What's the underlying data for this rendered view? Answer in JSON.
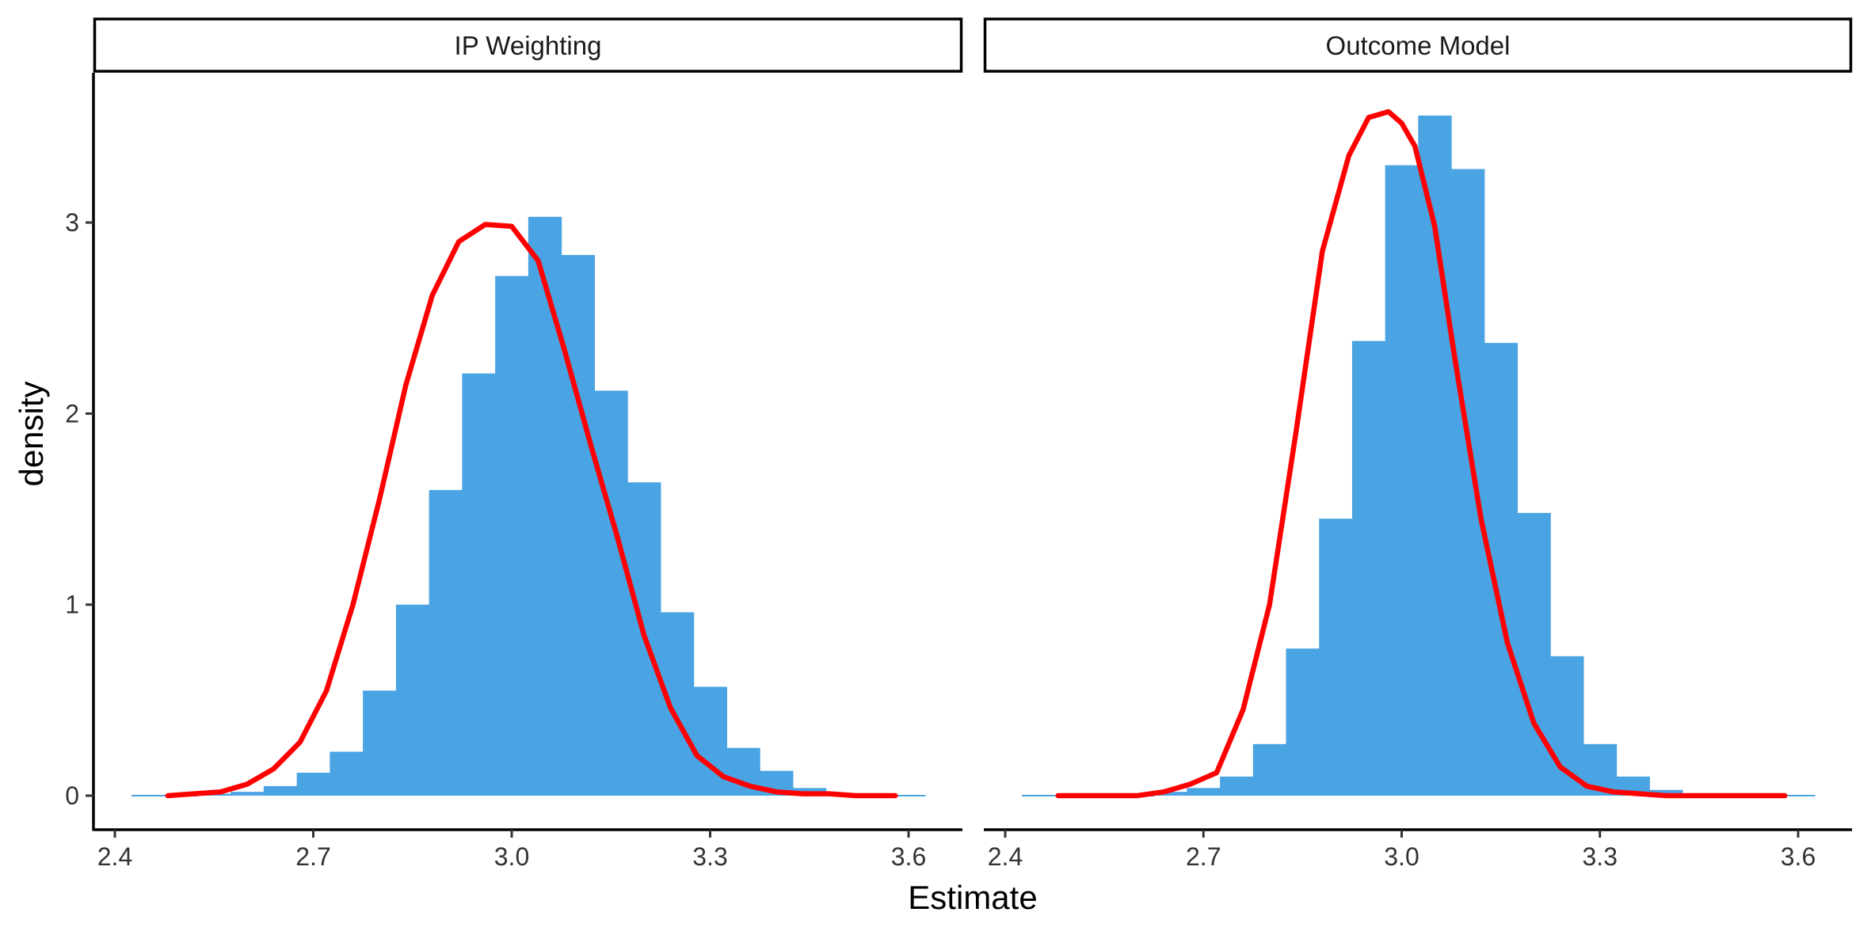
{
  "chart_data": [
    {
      "type": "histogram",
      "panel": "IP Weighting",
      "xlabel": "Estimate",
      "ylabel": "density",
      "xlim": [
        2.4,
        3.6
      ],
      "ylim": [
        0,
        3.5
      ],
      "xticks": [
        "2.4",
        "2.7",
        "3.0",
        "3.3",
        "3.6"
      ],
      "yticks": [
        "0",
        "1",
        "2",
        "3"
      ],
      "bin_width": 0.05,
      "bin_range": [
        2.425,
        3.625
      ],
      "hist_densities": [
        0.0,
        0.0,
        0.01,
        0.02,
        0.05,
        0.12,
        0.23,
        0.55,
        1.0,
        1.6,
        2.21,
        2.72,
        3.03,
        2.83,
        2.12,
        1.64,
        0.96,
        0.57,
        0.25,
        0.13,
        0.04,
        0.01,
        0.0,
        0.0
      ],
      "density_curve": {
        "color": "#ff0000",
        "x": [
          2.48,
          2.52,
          2.56,
          2.6,
          2.64,
          2.68,
          2.72,
          2.76,
          2.8,
          2.84,
          2.88,
          2.92,
          2.96,
          3.0,
          3.04,
          3.08,
          3.12,
          3.16,
          3.2,
          3.24,
          3.28,
          3.32,
          3.36,
          3.4,
          3.44,
          3.48,
          3.52,
          3.56,
          3.58
        ],
        "y": [
          0.0,
          0.01,
          0.02,
          0.06,
          0.14,
          0.28,
          0.55,
          1.0,
          1.55,
          2.15,
          2.62,
          2.9,
          2.99,
          2.98,
          2.8,
          2.33,
          1.83,
          1.35,
          0.84,
          0.46,
          0.21,
          0.1,
          0.05,
          0.02,
          0.01,
          0.01,
          0.0,
          0.0,
          0.0
        ]
      },
      "bar_color": "#4aa3e2"
    },
    {
      "type": "histogram",
      "panel": "Outcome Model",
      "xlabel": "Estimate",
      "ylabel": "density",
      "xlim": [
        2.4,
        3.6
      ],
      "ylim": [
        0,
        3.5
      ],
      "xticks": [
        "2.4",
        "2.7",
        "3.0",
        "3.3",
        "3.6"
      ],
      "yticks": [
        "0",
        "1",
        "2",
        "3"
      ],
      "bin_width": 0.05,
      "bin_range": [
        2.425,
        3.625
      ],
      "hist_densities": [
        0.0,
        0.0,
        0.0,
        0.0,
        0.02,
        0.04,
        0.1,
        0.27,
        0.77,
        1.45,
        2.38,
        3.3,
        3.56,
        3.28,
        2.37,
        1.48,
        0.73,
        0.27,
        0.1,
        0.03,
        0.01,
        0.0,
        0.0,
        0.0
      ],
      "density_curve": {
        "color": "#ff0000",
        "x": [
          2.48,
          2.52,
          2.56,
          2.6,
          2.64,
          2.68,
          2.72,
          2.76,
          2.8,
          2.84,
          2.88,
          2.92,
          2.95,
          2.98,
          3.0,
          3.02,
          3.05,
          3.08,
          3.12,
          3.16,
          3.2,
          3.24,
          3.28,
          3.32,
          3.36,
          3.4,
          3.44,
          3.48,
          3.52,
          3.56,
          3.58
        ],
        "y": [
          0.0,
          0.0,
          0.0,
          0.0,
          0.02,
          0.06,
          0.12,
          0.45,
          1.0,
          1.9,
          2.85,
          3.35,
          3.55,
          3.58,
          3.52,
          3.4,
          2.98,
          2.3,
          1.45,
          0.8,
          0.38,
          0.15,
          0.05,
          0.02,
          0.01,
          0.0,
          0.0,
          0.0,
          0.0,
          0.0,
          0.0
        ]
      },
      "bar_color": "#4aa3e2"
    }
  ]
}
